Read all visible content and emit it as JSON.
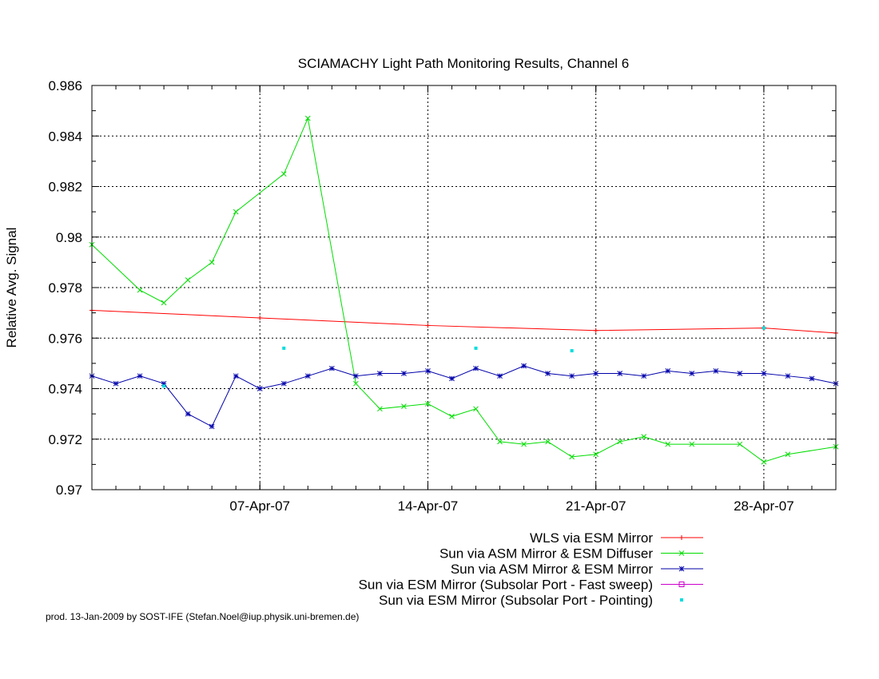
{
  "footer": "prod. 13-Jan-2009 by SOST-IFE (Stefan.Noel@iup.physik.uni-bremen.de)",
  "chart_data": {
    "type": "line",
    "title": "SCIAMACHY Light Path Monitoring Results, Channel 6",
    "xlabel": "",
    "ylabel": "Relative Avg. Signal",
    "xlim": [
      "2007-03-31",
      "2007-05-01"
    ],
    "ylim": [
      0.97,
      0.986
    ],
    "x_ticks": [
      "07-Apr-07",
      "14-Apr-07",
      "21-Apr-07",
      "28-Apr-07"
    ],
    "x_tick_dates": [
      "2007-04-07",
      "2007-04-14",
      "2007-04-21",
      "2007-04-28"
    ],
    "y_ticks": [
      "0.97",
      "0.972",
      "0.974",
      "0.976",
      "0.978",
      "0.98",
      "0.982",
      "0.984",
      "0.986"
    ],
    "grid": true,
    "legend_position": "bottom-right",
    "series": [
      {
        "name": "WLS via ESM Mirror",
        "color": "#ff0000",
        "marker": "plus",
        "line": true,
        "x": [
          "2007-03-31",
          "2007-04-07",
          "2007-04-14",
          "2007-04-21",
          "2007-04-28",
          "2007-05-01"
        ],
        "y": [
          0.9771,
          0.9768,
          0.9765,
          0.9763,
          0.9764,
          0.9762
        ]
      },
      {
        "name": "Sun via ASM Mirror & ESM Diffuser",
        "color": "#00dd00",
        "marker": "x",
        "line": true,
        "x": [
          "2007-03-31",
          "2007-04-02",
          "2007-04-03",
          "2007-04-04",
          "2007-04-05",
          "2007-04-06",
          "2007-04-08",
          "2007-04-09",
          "2007-04-11",
          "2007-04-12",
          "2007-04-13",
          "2007-04-14",
          "2007-04-15",
          "2007-04-16",
          "2007-04-17",
          "2007-04-18",
          "2007-04-19",
          "2007-04-20",
          "2007-04-21",
          "2007-04-22",
          "2007-04-23",
          "2007-04-24",
          "2007-04-25",
          "2007-04-27",
          "2007-04-28",
          "2007-04-29",
          "2007-05-01"
        ],
        "y": [
          0.9797,
          0.9779,
          0.9774,
          0.9783,
          0.979,
          0.981,
          0.9825,
          0.9847,
          0.9742,
          0.9732,
          0.9733,
          0.9734,
          0.9729,
          0.9732,
          0.9719,
          0.9718,
          0.9719,
          0.9713,
          0.9714,
          0.9719,
          0.9721,
          0.9718,
          0.9718,
          0.9718,
          0.9711,
          0.9714,
          0.9717
        ]
      },
      {
        "name": "Sun via ASM Mirror & ESM Mirror",
        "color": "#0000aa",
        "marker": "star",
        "line": true,
        "x": [
          "2007-03-31",
          "2007-04-01",
          "2007-04-02",
          "2007-04-03",
          "2007-04-04",
          "2007-04-05",
          "2007-04-06",
          "2007-04-07",
          "2007-04-08",
          "2007-04-09",
          "2007-04-10",
          "2007-04-11",
          "2007-04-12",
          "2007-04-13",
          "2007-04-14",
          "2007-04-15",
          "2007-04-16",
          "2007-04-17",
          "2007-04-18",
          "2007-04-19",
          "2007-04-20",
          "2007-04-21",
          "2007-04-22",
          "2007-04-23",
          "2007-04-24",
          "2007-04-25",
          "2007-04-26",
          "2007-04-27",
          "2007-04-28",
          "2007-04-29",
          "2007-04-30",
          "2007-05-01"
        ],
        "y": [
          0.9745,
          0.9742,
          0.9745,
          0.9742,
          0.973,
          0.9725,
          0.9745,
          0.974,
          0.9742,
          0.9745,
          0.9748,
          0.9745,
          0.9746,
          0.9746,
          0.9747,
          0.9744,
          0.9748,
          0.9745,
          0.9749,
          0.9746,
          0.9745,
          0.9746,
          0.9746,
          0.9745,
          0.9747,
          0.9746,
          0.9747,
          0.9746,
          0.9746,
          0.9745,
          0.9744,
          0.9742
        ]
      },
      {
        "name": "Sun via ESM Mirror (Subsolar Port - Fast sweep)",
        "color": "#cc00cc",
        "marker": "square",
        "line": true,
        "x": [],
        "y": []
      },
      {
        "name": "Sun via ESM Mirror (Subsolar Port - Pointing)",
        "color": "#00dddd",
        "marker": "dot",
        "line": false,
        "x": [
          "2007-04-03",
          "2007-04-08",
          "2007-04-16",
          "2007-04-20",
          "2007-04-28"
        ],
        "y": [
          0.9741,
          0.9756,
          0.9756,
          0.9755,
          0.9764
        ]
      }
    ]
  }
}
